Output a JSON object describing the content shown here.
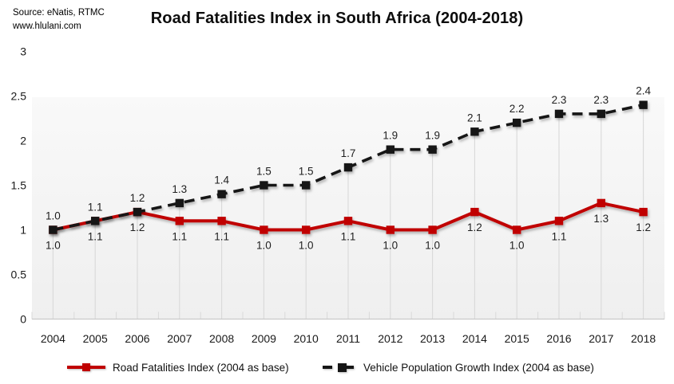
{
  "source": {
    "line1": "Source: eNatis, RTMC",
    "line2": "www.hlulani.com"
  },
  "chart_data": {
    "type": "line",
    "title": "Road Fatalities Index in South Africa (2004-2018)",
    "categories": [
      "2004",
      "2005",
      "2006",
      "2007",
      "2008",
      "2009",
      "2010",
      "2011",
      "2012",
      "2013",
      "2014",
      "2015",
      "2016",
      "2017",
      "2018"
    ],
    "series": [
      {
        "name": "Road Fatalities Index (2004 as base)",
        "color": "#c00000",
        "line_style": "solid",
        "marker": "square",
        "label_position": "below",
        "values": [
          1.0,
          1.1,
          1.2,
          1.1,
          1.1,
          1.0,
          1.0,
          1.1,
          1.0,
          1.0,
          1.2,
          1.0,
          1.1,
          1.3,
          1.2
        ]
      },
      {
        "name": "Vehicle Population Growth Index (2004 as base)",
        "color": "#161616",
        "line_style": "dashed",
        "marker": "square",
        "label_position": "above",
        "values": [
          1.0,
          1.1,
          1.2,
          1.3,
          1.4,
          1.5,
          1.5,
          1.7,
          1.9,
          1.9,
          2.1,
          2.2,
          2.3,
          2.3,
          2.4
        ]
      }
    ],
    "xlabel": "",
    "ylabel": "",
    "ylim": [
      0,
      3
    ],
    "y_ticks": [
      3,
      2.5,
      2,
      1.5,
      1,
      0.5,
      0
    ],
    "grid": "vertical-drop-lines",
    "legend_position": "bottom",
    "gridline_color": "#d9d9d9",
    "axis_color": "#c9c9c9",
    "label_color": "#1f1f1f"
  }
}
